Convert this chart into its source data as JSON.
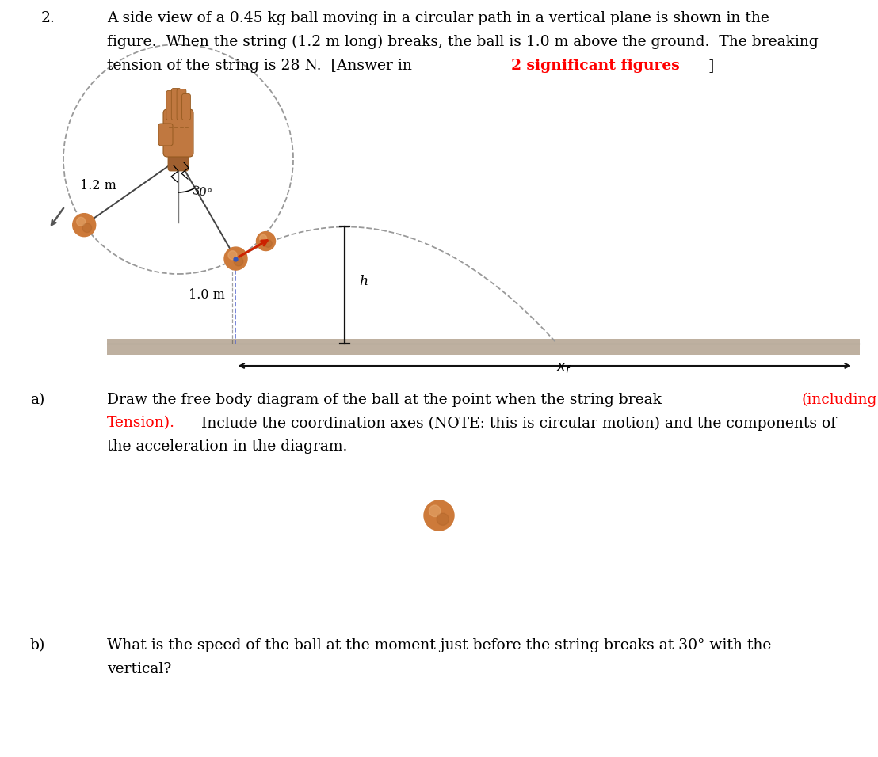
{
  "title_number": "2.",
  "title_text_line1": "A side view of a 0.45 kg ball moving in a circular path in a vertical plane is shown in the",
  "title_text_line2": "figure.  When the string (1.2 m long) breaks, the ball is 1.0 m above the ground.  The breaking",
  "title_text_line3_before_red": "tension of the string is 28 N.  [Answer in ",
  "title_text_red": "2 significant figures",
  "title_text_line3_after_red": "]",
  "label_12m": "1.2 m",
  "label_30deg": "30°",
  "label_10m": "1.0 m",
  "label_h": "h",
  "part_a_label": "a)",
  "part_a_line1_black": "Draw the free body diagram of the ball at the point when the string break ",
  "part_a_line1_red": "(including",
  "part_a_line2_red": "Tension).",
  "part_a_line2_black": "  Include the coordination axes (NOTE: this is circular motion) and the components of",
  "part_a_line3": "the acceleration in the diagram.",
  "part_b_label": "b)",
  "part_b_line1": "What is the speed of the ball at the moment just before the string breaks at 30° with the",
  "part_b_line2": "vertical?",
  "ball_color": "#CD7A3A",
  "ball_highlight": "#E8AA70",
  "ball_dark": "#A05820",
  "bg_color": "#FFFFFF",
  "ground_fill": "#BEB0A0",
  "ground_top": "#999080",
  "string_color": "#444444",
  "dashed_gray": "#999999",
  "vel_arrow_color": "#CC2200",
  "blue_dot_color": "#3355BB",
  "blue_dashed_color": "#5566CC",
  "h_arrow_color": "#111111",
  "xf_arrow_color": "#111111",
  "swing_arrow_color": "#555555",
  "hand_skin": "#C07840",
  "hand_dark": "#955A20",
  "hand_shadow": "#A06030",
  "font_size_main": 13.5,
  "font_size_label": 11.5,
  "font_family": "DejaVu Serif"
}
